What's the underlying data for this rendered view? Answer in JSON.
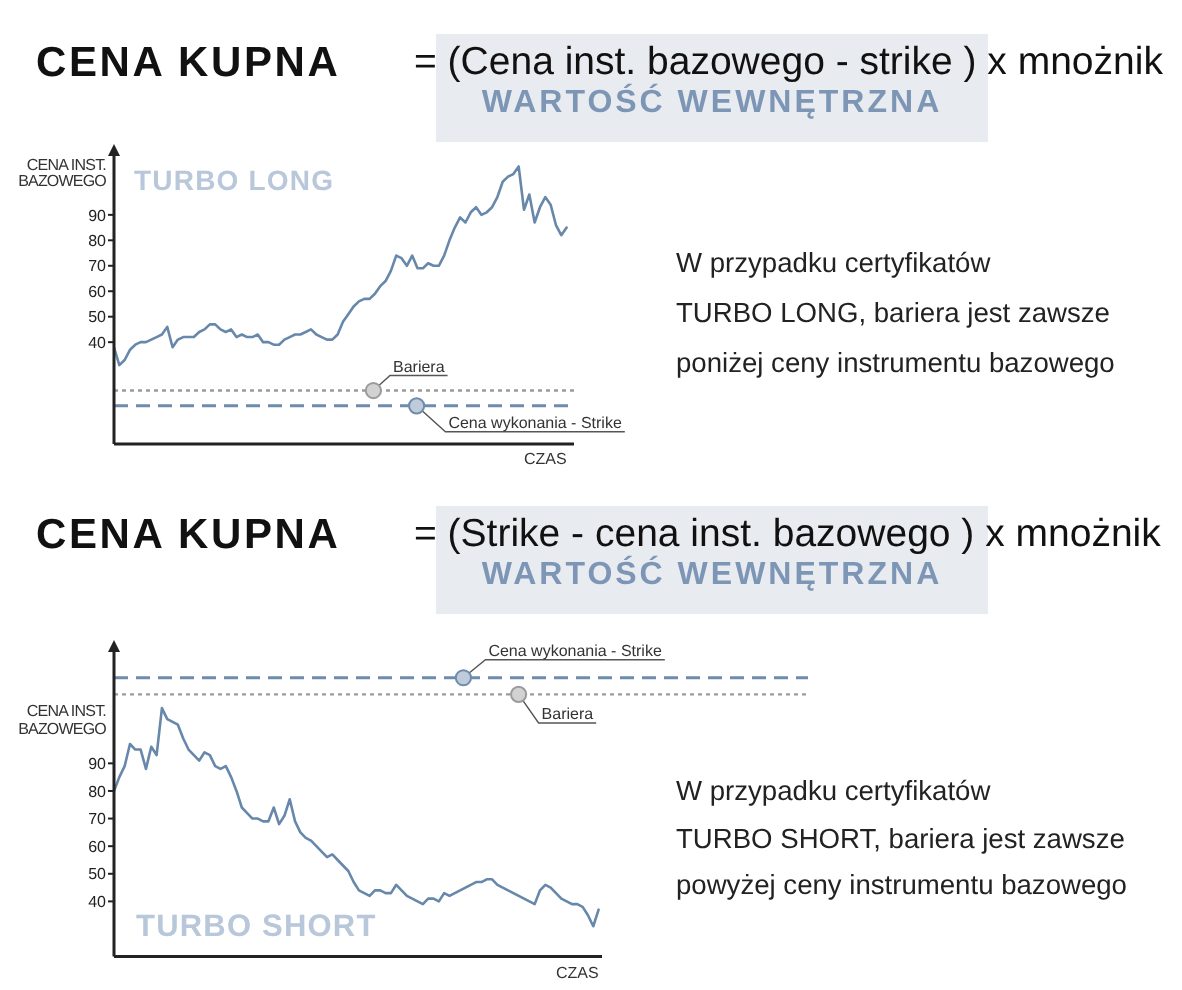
{
  "chart_data": [
    {
      "type": "line",
      "title": "CENA KUPNA",
      "subtitle": "= (Cena inst. bazowego - strike ) x mnożnik",
      "ylabel": "CENA INST.\nBAZOWEGO",
      "xlabel": "CZAS",
      "annotations": [
        "WARTOŚĆ WEWNĘTRZNA",
        "TURBO LONG",
        "W przypadku certyfikatów\nTURBO LONG, bariera jest zawsze\nponiżej ceny instrumentu bazowego"
      ],
      "categories": [
        null,
        null,
        null,
        null,
        null,
        null,
        null,
        null,
        null,
        null,
        null,
        null,
        null,
        null,
        null,
        null,
        null,
        null,
        null,
        null,
        null,
        null,
        null,
        null,
        null,
        null,
        null,
        null,
        null,
        null,
        null,
        null,
        null,
        null,
        null,
        null,
        null,
        null,
        null,
        null,
        null,
        null,
        null,
        null,
        null,
        null,
        null,
        null,
        null,
        null,
        null,
        null,
        null,
        null,
        null,
        null,
        null,
        null,
        null,
        null,
        null,
        null,
        null,
        null,
        null,
        null,
        null,
        null,
        null,
        null,
        null,
        null,
        null,
        null,
        null,
        null,
        null,
        null,
        null,
        null,
        null,
        null,
        null,
        null,
        null,
        null
      ],
      "values": [
        38,
        31,
        33,
        37,
        39,
        40,
        40,
        41,
        42,
        43,
        46,
        38,
        41,
        42,
        42,
        42,
        44,
        45,
        47,
        47,
        45,
        44,
        45,
        42,
        43,
        42,
        42,
        43,
        40,
        40,
        39,
        39,
        41,
        42,
        43,
        43,
        44,
        45,
        43,
        42,
        41,
        41,
        43,
        48,
        51,
        54,
        56,
        57,
        57,
        59,
        62,
        64,
        68,
        74,
        73,
        70,
        74,
        69,
        69,
        71,
        70,
        70,
        74,
        80,
        85,
        89,
        87,
        91,
        93,
        90,
        91,
        93,
        97,
        103,
        105,
        106,
        109,
        92,
        98,
        87,
        93,
        97,
        94,
        86,
        82,
        85
      ],
      "color": "#6787ab",
      "ylim": [
        0,
        115
      ],
      "yticks": [
        40,
        50,
        60,
        70,
        80,
        90
      ],
      "tick_labels": "y",
      "ref_lines": [
        {
          "axis": "y",
          "value": 21,
          "label": "Bariera",
          "color": "#9b9b9b",
          "line_style": "dotted"
        },
        {
          "axis": "y",
          "value": 15,
          "label": "Cena wykonania - Strike",
          "color": "#6f8cad",
          "line_style": "dashed"
        }
      ]
    },
    {
      "type": "line",
      "title": "CENA KUPNA",
      "subtitle": "= (Strike - cena inst. bazowego ) x mnożnik",
      "ylabel": "CENA INST.\nBAZOWEGO",
      "xlabel": "CZAS",
      "annotations": [
        "WARTOŚĆ WEWNĘTRZNA",
        "TURBO SHORT",
        "W przypadku certyfikatów\nTURBO SHORT, bariera jest zawsze\npowyżej ceny instrumentu bazowego"
      ],
      "categories": [
        null,
        null,
        null,
        null,
        null,
        null,
        null,
        null,
        null,
        null,
        null,
        null,
        null,
        null,
        null,
        null,
        null,
        null,
        null,
        null,
        null,
        null,
        null,
        null,
        null,
        null,
        null,
        null,
        null,
        null,
        null,
        null,
        null,
        null,
        null,
        null,
        null,
        null,
        null,
        null,
        null,
        null,
        null,
        null,
        null,
        null,
        null,
        null,
        null,
        null,
        null,
        null,
        null,
        null,
        null,
        null,
        null,
        null,
        null,
        null,
        null,
        null,
        null,
        null,
        null,
        null,
        null,
        null,
        null,
        null,
        null,
        null,
        null,
        null,
        null,
        null,
        null,
        null,
        null,
        null,
        null,
        null,
        null,
        null,
        null,
        null,
        null,
        null,
        null,
        null,
        null,
        null
      ],
      "values": [
        80,
        85,
        89,
        97,
        95,
        95,
        88,
        96,
        93,
        110,
        106,
        105,
        104,
        99,
        95,
        93,
        91,
        94,
        93,
        89,
        88,
        89,
        85,
        80,
        74,
        72,
        70,
        70,
        69,
        69,
        74,
        68,
        71,
        77,
        69,
        65,
        63,
        62,
        60,
        58,
        56,
        57,
        55,
        53,
        51,
        47,
        44,
        43,
        42,
        44,
        44,
        43,
        43,
        46,
        44,
        42,
        41,
        40,
        39,
        41,
        41,
        40,
        43,
        42,
        43,
        44,
        45,
        46,
        47,
        47,
        48,
        48,
        46,
        45,
        44,
        43,
        42,
        41,
        40,
        39,
        44,
        46,
        45,
        43,
        41,
        40,
        39,
        39,
        38,
        35,
        31,
        37
      ],
      "color": "#6787ab",
      "ylim": [
        20,
        132
      ],
      "yticks": [
        40,
        50,
        60,
        70,
        80,
        90
      ],
      "tick_labels": "y",
      "ref_lines": [
        {
          "axis": "y",
          "value": 115,
          "label": "Bariera",
          "color": "#9b9b9b",
          "line_style": "dotted"
        },
        {
          "axis": "y",
          "value": 121,
          "label": "Cena wykonania - Strike",
          "color": "#6f8cad",
          "line_style": "dashed"
        }
      ]
    }
  ]
}
